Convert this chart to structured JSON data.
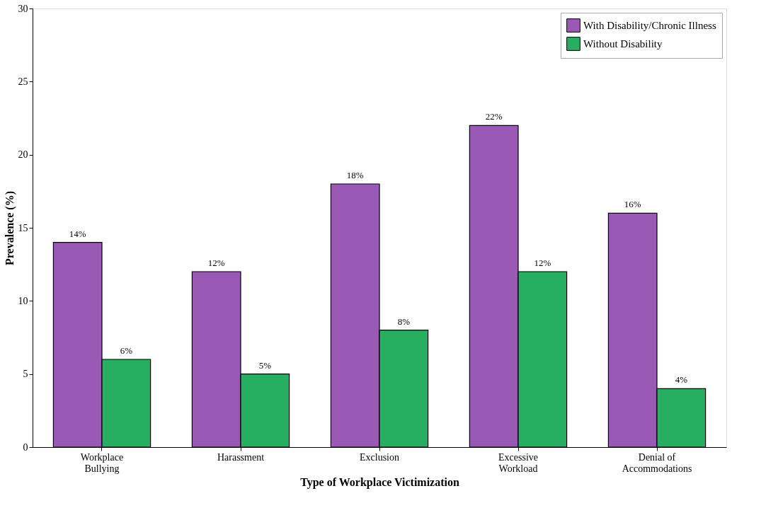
{
  "chart_data": {
    "type": "bar",
    "xlabel": "Type of Workplace Victimization",
    "ylabel": "Prevalence (%)",
    "categories": [
      "Workplace\nBullying",
      "Harassment",
      "Exclusion",
      "Excessive\nWorkload",
      "Denial of\nAccommodations"
    ],
    "series": [
      {
        "name": "With Disability/Chronic Illness",
        "color": "#9b59b6",
        "values": [
          14,
          12,
          18,
          22,
          16
        ],
        "value_labels": [
          "14%",
          "12%",
          "18%",
          "22%",
          "16%"
        ]
      },
      {
        "name": "Without Disability",
        "color": "#27ae60",
        "values": [
          6,
          5,
          8,
          12,
          4
        ],
        "value_labels": [
          "6%",
          "5%",
          "8%",
          "12%",
          "4%"
        ]
      }
    ],
    "ylim": [
      0,
      30
    ],
    "yticks": [
      0,
      5,
      10,
      15,
      20,
      25,
      30
    ],
    "grid": false,
    "legend": "top right"
  }
}
